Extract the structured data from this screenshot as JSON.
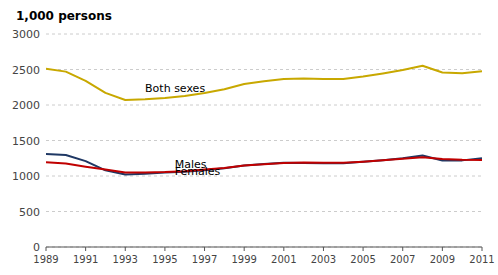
{
  "chart_data": {
    "type": "line",
    "y_label": "1,000 persons",
    "x": [
      1989,
      1990,
      1991,
      1992,
      1993,
      1994,
      1995,
      1996,
      1997,
      1998,
      1999,
      2000,
      2001,
      2002,
      2003,
      2004,
      2005,
      2006,
      2007,
      2008,
      2009,
      2010,
      2011
    ],
    "series": [
      {
        "name": "Both sexes",
        "color": "#c8a800",
        "label_x": 1994.0,
        "label_y": 2185,
        "values": [
          2510,
          2470,
          2340,
          2170,
          2070,
          2080,
          2100,
          2127,
          2170,
          2222,
          2296,
          2335,
          2367,
          2372,
          2365,
          2365,
          2401,
          2444,
          2492,
          2553,
          2457,
          2447,
          2474
        ]
      },
      {
        "name": "Males",
        "color": "#1f3864",
        "label_x": 1995.5,
        "label_y": 1118,
        "values": [
          1310,
          1295,
          1210,
          1080,
          1020,
          1030,
          1050,
          1060,
          1080,
          1108,
          1148,
          1168,
          1185,
          1183,
          1178,
          1178,
          1199,
          1222,
          1250,
          1290,
          1217,
          1220,
          1250
        ]
      },
      {
        "name": "Females",
        "color": "#c00000",
        "label_x": 1995.5,
        "label_y": 1008,
        "values": [
          1195,
          1175,
          1130,
          1090,
          1050,
          1050,
          1055,
          1067,
          1090,
          1114,
          1148,
          1167,
          1182,
          1189,
          1187,
          1187,
          1202,
          1222,
          1243,
          1264,
          1240,
          1228,
          1224
        ]
      }
    ],
    "xlim": [
      1989,
      2011
    ],
    "xticks": [
      1989,
      1991,
      1993,
      1995,
      1997,
      1999,
      2001,
      2003,
      2005,
      2007,
      2009,
      2011
    ],
    "ylim": [
      0,
      3000
    ],
    "yticks": [
      0,
      500,
      1000,
      1500,
      2000,
      2500,
      3000
    ],
    "grid": true
  }
}
